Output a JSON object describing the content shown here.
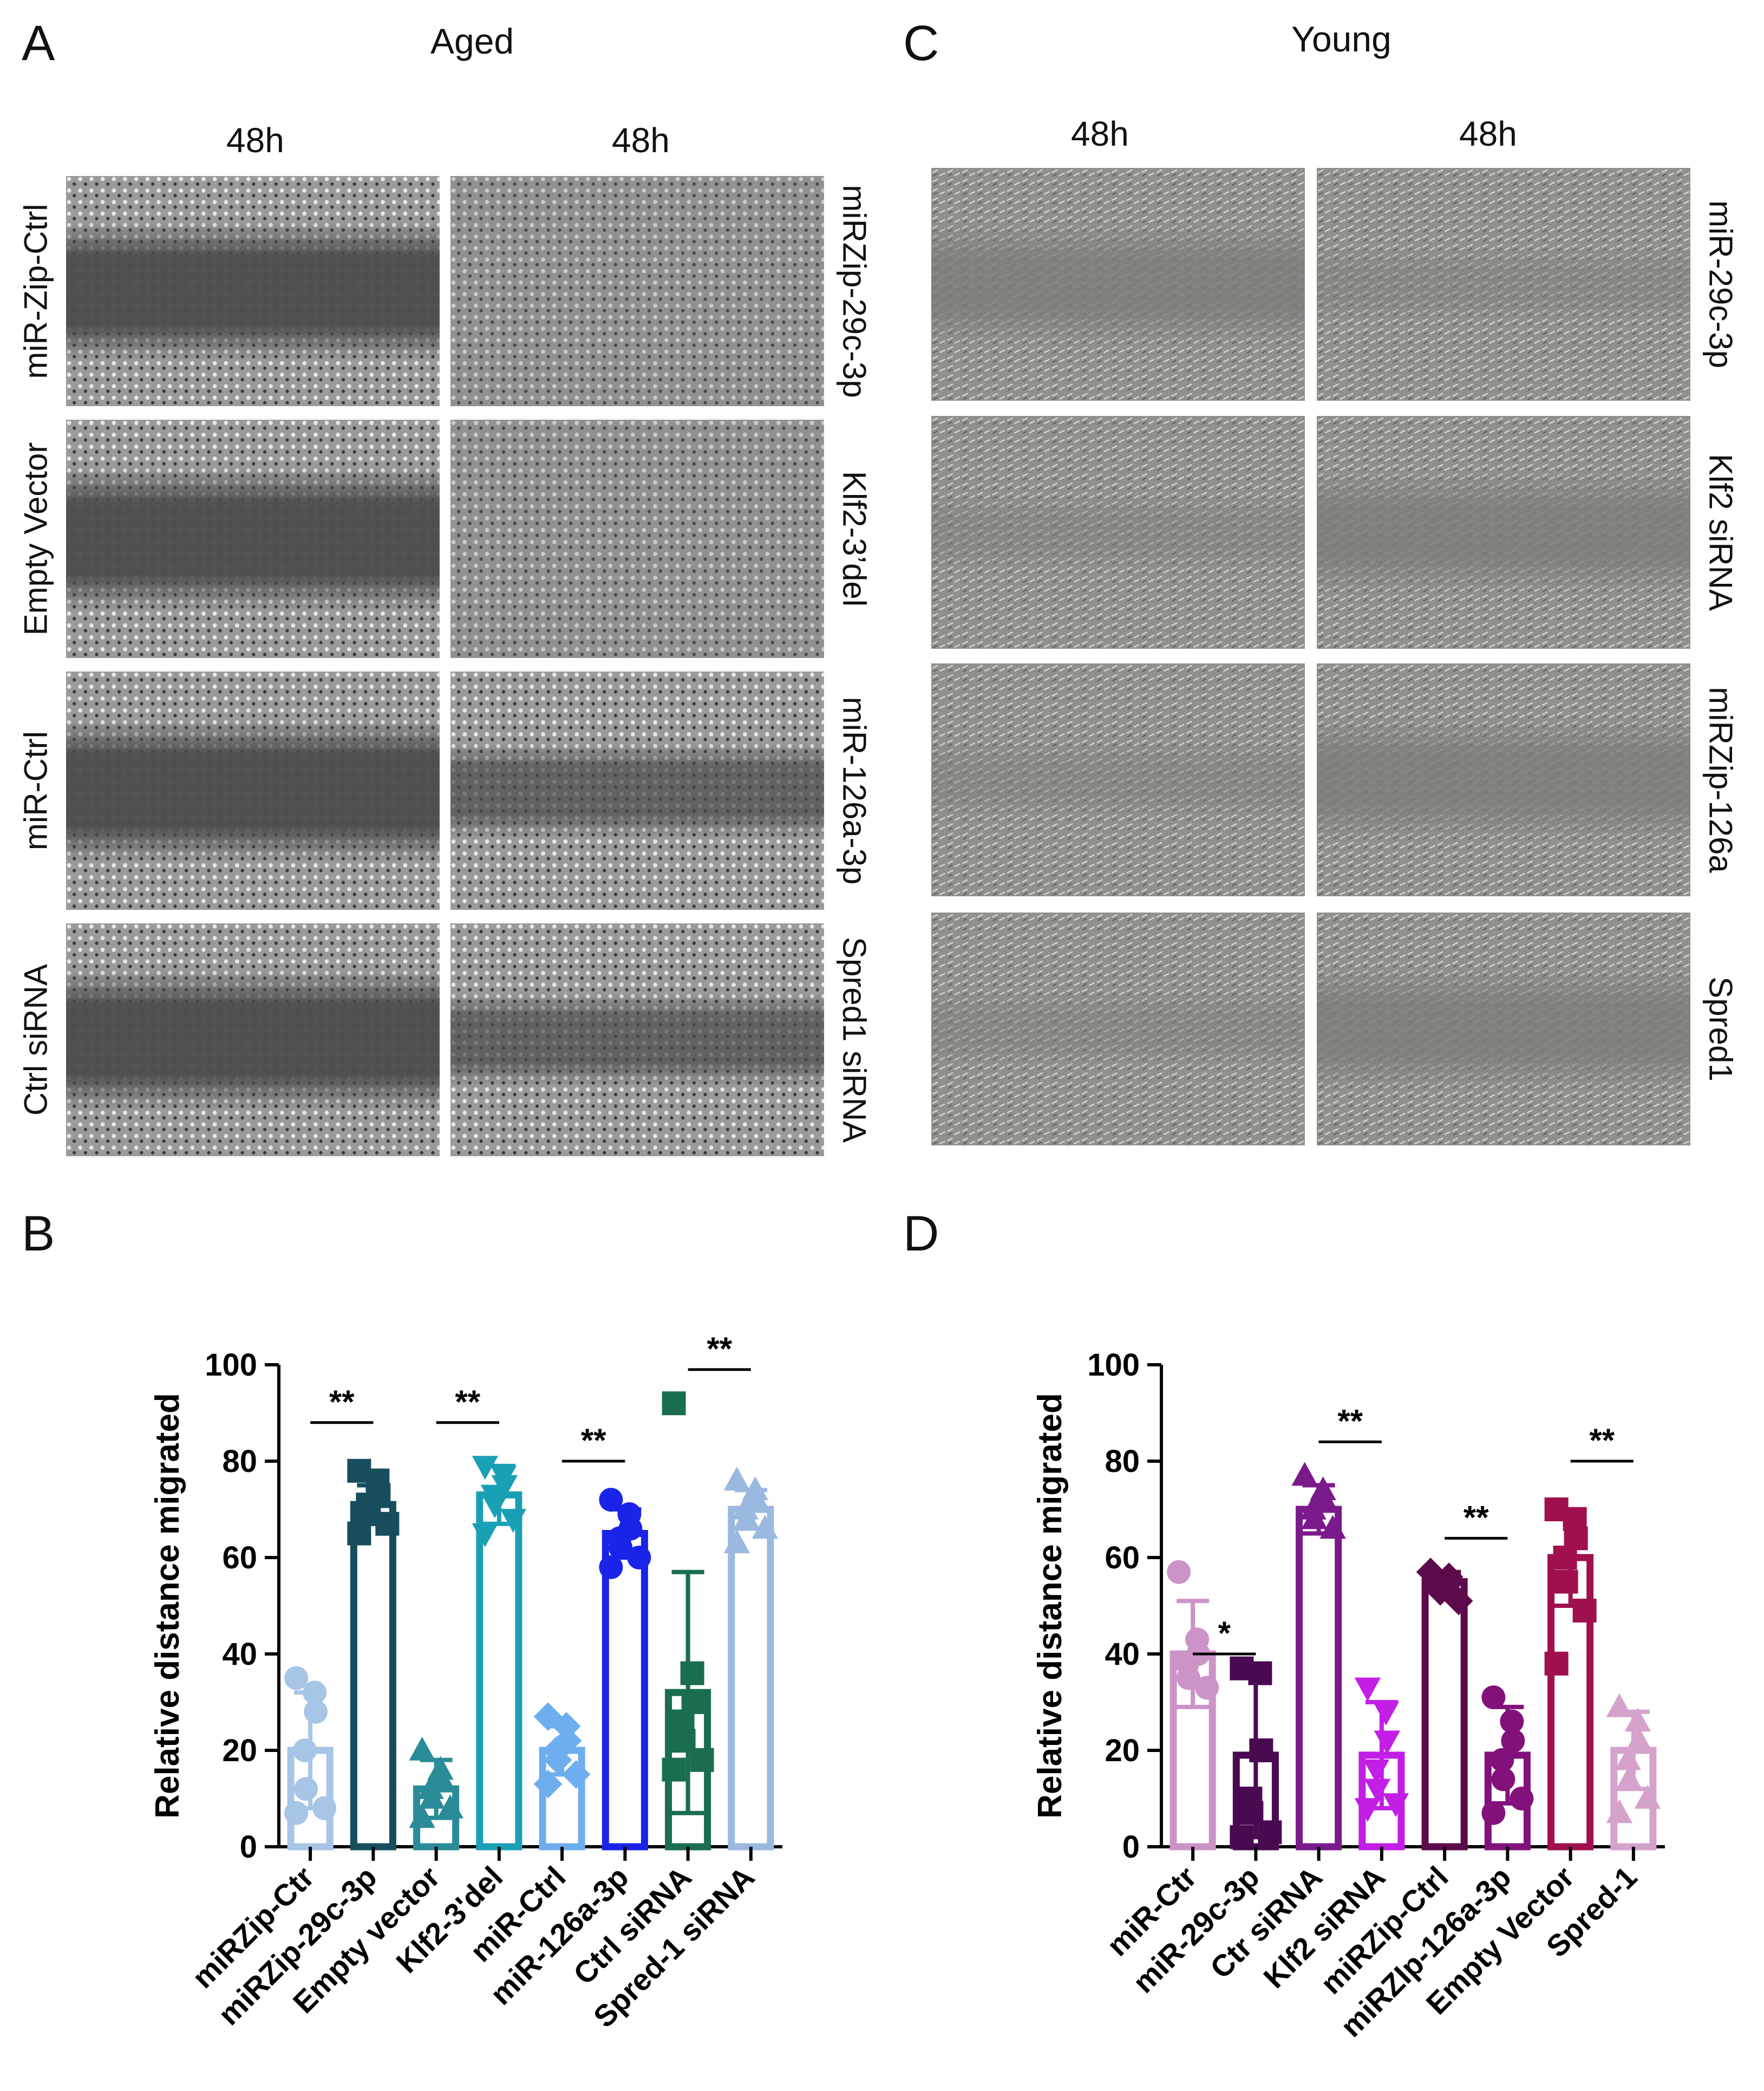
{
  "panels": {
    "A": {
      "letter": "A",
      "title": "Aged",
      "time_labels": [
        "48h",
        "48h"
      ],
      "left_labels": [
        "miR-Zip-Ctrl",
        "Empty Vector",
        "miR-Ctrl",
        "Ctrl  siRNA"
      ],
      "right_labels": [
        "miRZip-29c-3p",
        "Klf2-3’del",
        "miR-126a-3p",
        "Spred1 siRNA"
      ]
    },
    "C": {
      "letter": "C",
      "title": "Young",
      "time_labels": [
        "48h",
        "48h"
      ],
      "right_labels": [
        "miR-29c-3p",
        "Klf2 siRNA",
        "miRZip-126a",
        "Spred1"
      ]
    },
    "B": {
      "letter": "B"
    },
    "D": {
      "letter": "D"
    }
  },
  "chart_data": [
    {
      "panel": "B",
      "type": "bar",
      "ylabel": "Relative distance migrated",
      "ylim": [
        0,
        100
      ],
      "yticks": [
        0,
        20,
        40,
        60,
        80,
        100
      ],
      "categories": [
        "miRZip-Ctr",
        "miRZip-29c-3p",
        "Empty vector",
        "Klf2-3'del",
        "miR-Ctrl",
        "miR-126a-3p",
        "Ctrl siRNA",
        "Spred-1 siRNA"
      ],
      "values": [
        20,
        71,
        12,
        73,
        20,
        65,
        32,
        70
      ],
      "error": [
        12,
        4,
        6,
        6,
        5,
        5,
        25,
        4
      ],
      "colors": [
        "#a7c5e6",
        "#174e5e",
        "#2a8c98",
        "#1aa0b4",
        "#6eaeee",
        "#1a24e8",
        "#1a6e4e",
        "#9ab8e0"
      ],
      "markers": [
        "circle",
        "square",
        "triangle",
        "triangle-down",
        "diamond",
        "circle",
        "square",
        "triangle"
      ],
      "points": [
        [
          35,
          32,
          28,
          20,
          12,
          8,
          7
        ],
        [
          78,
          76,
          73,
          71,
          69,
          67,
          65
        ],
        [
          20,
          16,
          14,
          12,
          10,
          8,
          6
        ],
        [
          79,
          77,
          75,
          73,
          71,
          68,
          65
        ],
        [
          27,
          25,
          22,
          20,
          18,
          15,
          13
        ],
        [
          72,
          69,
          66,
          64,
          62,
          60,
          58
        ],
        [
          92,
          36,
          30,
          26,
          22,
          18,
          16
        ],
        [
          76,
          74,
          72,
          70,
          68,
          66,
          63
        ]
      ],
      "significance": [
        {
          "pair": [
            0,
            1
          ],
          "label": "**",
          "y": 88
        },
        {
          "pair": [
            2,
            3
          ],
          "label": "**",
          "y": 88
        },
        {
          "pair": [
            4,
            5
          ],
          "label": "**",
          "y": 80
        },
        {
          "pair": [
            6,
            7
          ],
          "label": "**",
          "y": 99
        }
      ]
    },
    {
      "panel": "D",
      "type": "bar",
      "ylabel": "Relative distance migrated",
      "ylim": [
        0,
        100
      ],
      "yticks": [
        0,
        20,
        40,
        60,
        80,
        100
      ],
      "categories": [
        "miR-Ctr",
        "miR-29c-3p",
        "Ctr siRNA",
        "Klf2 siRNA",
        "miRZip-Ctrl",
        "miRZIp-126a-3p",
        "Empty Vector",
        "Spred-1"
      ],
      "values": [
        40,
        19,
        70,
        19,
        55,
        19,
        60,
        20
      ],
      "error": [
        11,
        17,
        5,
        11,
        2,
        10,
        10,
        8
      ],
      "colors": [
        "#cc94c6",
        "#4a0a52",
        "#7b1a8a",
        "#c21ee6",
        "#5c0a4a",
        "#82117c",
        "#a0104e",
        "#d5a2cc"
      ],
      "markers": [
        "circle",
        "square",
        "triangle",
        "triangle-down",
        "diamond",
        "circle",
        "square",
        "triangle"
      ],
      "points": [
        [
          57,
          43,
          40,
          38,
          35,
          33
        ],
        [
          37,
          36,
          20,
          10,
          7,
          3,
          2
        ],
        [
          77,
          74,
          72,
          70,
          68,
          66
        ],
        [
          33,
          28,
          22,
          16,
          12,
          9,
          8
        ],
        [
          57,
          56,
          55,
          54,
          53,
          51
        ],
        [
          31,
          26,
          22,
          18,
          14,
          10,
          7
        ],
        [
          70,
          68,
          64,
          60,
          55,
          49,
          38
        ],
        [
          29,
          26,
          22,
          18,
          14,
          10,
          7
        ]
      ],
      "significance": [
        {
          "pair": [
            0,
            1
          ],
          "label": "*",
          "y": 40
        },
        {
          "pair": [
            2,
            3
          ],
          "label": "**",
          "y": 84
        },
        {
          "pair": [
            4,
            5
          ],
          "label": "**",
          "y": 64
        },
        {
          "pair": [
            6,
            7
          ],
          "label": "**",
          "y": 80
        }
      ]
    }
  ]
}
